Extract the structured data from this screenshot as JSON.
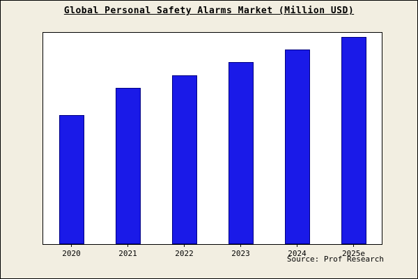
{
  "title": "Global Personal Safety Alarms Market (Million USD)",
  "source": "Source: Prof Research",
  "chart_data": {
    "type": "bar",
    "title": "Global Personal Safety Alarms Market (Million USD)",
    "categories": [
      "2020",
      "2021",
      "2022",
      "2023",
      "2024",
      "2025e"
    ],
    "values": [
      61,
      74,
      80,
      86,
      92,
      98
    ],
    "xlabel": "",
    "ylabel": "",
    "ylim": [
      0,
      100
    ],
    "grid": false,
    "legend_position": "none",
    "bar_color": "#1a1ae8",
    "bar_border_color": "#000080",
    "background_color": "#f2eee1",
    "plot_background_color": "#ffffff",
    "axis_color": "#000000"
  }
}
